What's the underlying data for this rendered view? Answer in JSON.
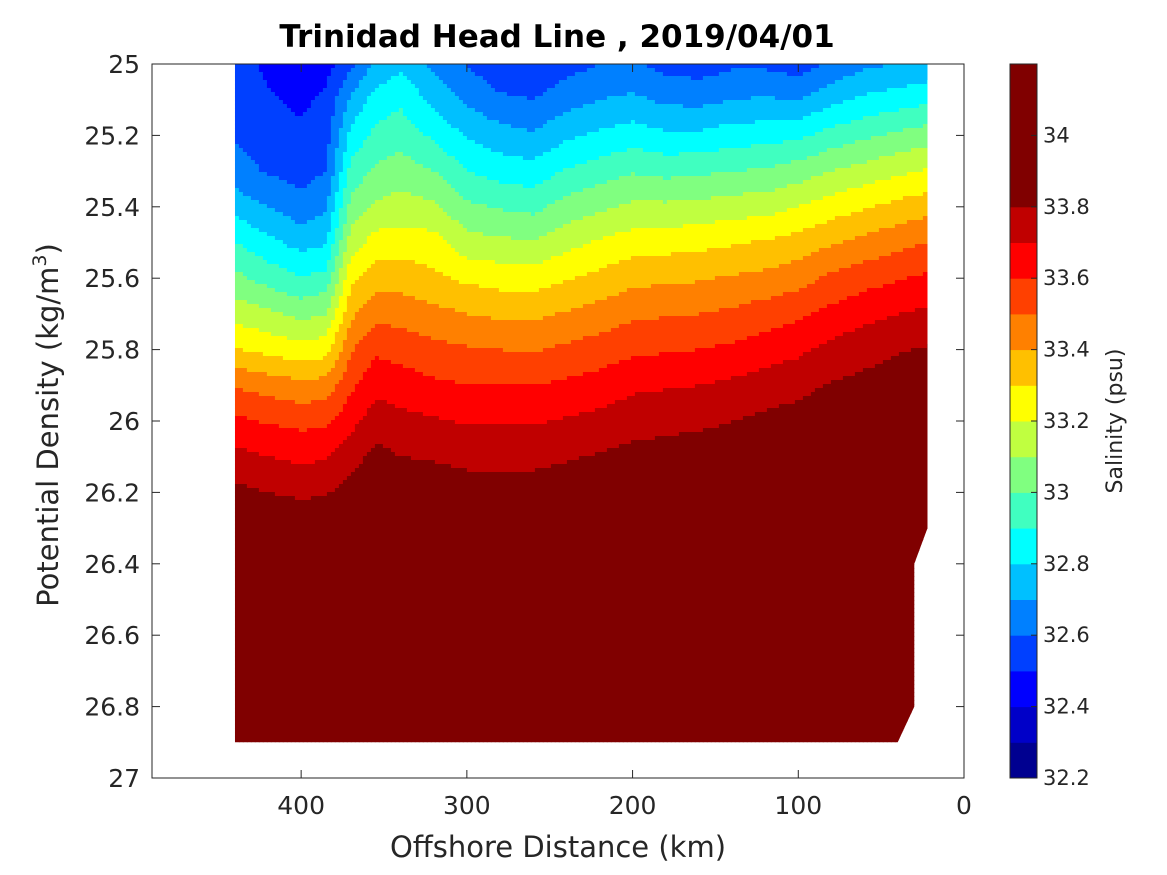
{
  "chart_data": {
    "type": "heatmap",
    "subtype": "filled-contour",
    "title": "Trinidad Head Line , 2019/04/01",
    "xlabel": "Offshore Distance (km)",
    "ylabel": "Potential Density (kg/m",
    "ylabel_sup": "3",
    "ylabel_end": ")",
    "colorbar_label": "Salinity (psu)",
    "x_reversed": true,
    "y_reversed": true,
    "xlim": [
      0,
      490
    ],
    "ylim": [
      25,
      27
    ],
    "x_ticks": [
      400,
      300,
      200,
      100,
      0
    ],
    "y_ticks": [
      25,
      25.2,
      25.4,
      25.6,
      25.8,
      26,
      26.2,
      26.4,
      26.6,
      26.8,
      27
    ],
    "colorbar_range": [
      32.2,
      34.2
    ],
    "colorbar_ticks": [
      32.2,
      32.4,
      32.6,
      32.8,
      33,
      33.2,
      33.4,
      33.6,
      33.8,
      34
    ],
    "contour_step": 0.1,
    "color_levels": [
      "#000090",
      "#0000c8",
      "#0000ff",
      "#0040ff",
      "#0080ff",
      "#00c0ff",
      "#00ffff",
      "#40ffc0",
      "#80ff80",
      "#c0ff40",
      "#ffff00",
      "#ffc000",
      "#ff8000",
      "#ff4000",
      "#ff0000",
      "#c00000",
      "#800000"
    ],
    "columns": [
      {
        "x": 440,
        "s": [
          32.55,
          32.55,
          32.59,
          32.64,
          32.76,
          32.9,
          33.03,
          33.16,
          33.31,
          33.49,
          33.62,
          33.73,
          33.83,
          33.93,
          34.0,
          34.05,
          34.1,
          34.11
        ]
      },
      {
        "x": 420,
        "s": [
          32.48,
          32.51,
          32.55,
          32.59,
          32.7,
          32.83,
          32.96,
          33.12,
          33.27,
          33.46,
          33.59,
          33.7,
          33.8,
          33.9,
          33.99,
          34.04,
          34.09,
          34.11
        ]
      },
      {
        "x": 400,
        "s": [
          32.44,
          32.48,
          32.52,
          32.56,
          32.64,
          32.76,
          32.91,
          33.07,
          33.24,
          33.43,
          33.57,
          33.68,
          33.78,
          33.89,
          33.98,
          34.03,
          34.08,
          34.11
        ]
      },
      {
        "x": 385,
        "s": [
          32.46,
          32.52,
          32.56,
          32.6,
          32.68,
          32.79,
          32.93,
          33.1,
          33.26,
          33.44,
          33.58,
          33.69,
          33.79,
          33.89,
          33.98,
          34.03,
          34.08,
          34.11
        ]
      },
      {
        "x": 370,
        "s": [
          32.58,
          32.72,
          32.83,
          32.93,
          33.04,
          33.15,
          33.27,
          33.38,
          33.49,
          33.58,
          33.67,
          33.76,
          33.84,
          33.92,
          33.99,
          34.04,
          34.08,
          34.11
        ]
      },
      {
        "x": 355,
        "s": [
          32.72,
          32.84,
          32.93,
          33.02,
          33.12,
          33.24,
          33.36,
          33.47,
          33.58,
          33.67,
          33.75,
          33.83,
          33.9,
          33.96,
          34.01,
          34.05,
          34.09,
          34.11
        ]
      },
      {
        "x": 340,
        "s": [
          32.78,
          32.88,
          32.96,
          33.05,
          33.14,
          33.25,
          33.36,
          33.46,
          33.56,
          33.65,
          33.73,
          33.8,
          33.88,
          33.95,
          34.01,
          34.06,
          34.1,
          34.12
        ]
      },
      {
        "x": 320,
        "s": [
          32.68,
          32.77,
          32.88,
          33.0,
          33.12,
          33.24,
          33.32,
          33.43,
          33.53,
          33.62,
          33.71,
          33.79,
          33.87,
          33.94,
          34.01,
          34.07,
          34.11,
          34.12
        ]
      },
      {
        "x": 300,
        "s": [
          32.6,
          32.68,
          32.79,
          32.9,
          33.02,
          33.14,
          33.28,
          33.4,
          33.51,
          33.6,
          33.69,
          33.77,
          33.85,
          33.93,
          34.0,
          34.06,
          34.1,
          34.12
        ]
      },
      {
        "x": 280,
        "s": [
          32.52,
          32.62,
          32.74,
          32.86,
          32.99,
          33.12,
          33.26,
          33.38,
          33.5,
          33.6,
          33.69,
          33.77,
          33.85,
          33.93,
          34.0,
          34.05,
          34.1,
          34.11
        ]
      },
      {
        "x": 260,
        "s": [
          32.5,
          32.6,
          32.71,
          32.84,
          32.97,
          33.11,
          33.25,
          33.38,
          33.49,
          33.6,
          33.69,
          33.77,
          33.85,
          33.92,
          33.99,
          34.05,
          34.1,
          34.11
        ]
      },
      {
        "x": 240,
        "s": [
          32.56,
          32.66,
          32.78,
          32.91,
          33.04,
          33.17,
          33.29,
          33.41,
          33.52,
          33.62,
          33.71,
          33.79,
          33.86,
          33.93,
          34.0,
          34.05,
          34.1,
          34.11
        ]
      },
      {
        "x": 220,
        "s": [
          32.6,
          32.7,
          32.82,
          32.95,
          33.08,
          33.21,
          33.33,
          33.44,
          33.55,
          33.64,
          33.73,
          33.81,
          33.88,
          33.95,
          34.01,
          34.06,
          34.1,
          34.11
        ]
      },
      {
        "x": 200,
        "s": [
          32.62,
          32.72,
          32.85,
          32.99,
          33.12,
          33.25,
          33.37,
          33.48,
          33.58,
          33.68,
          33.76,
          33.83,
          33.9,
          33.96,
          34.01,
          34.05,
          34.09,
          34.11
        ]
      },
      {
        "x": 180,
        "s": [
          32.56,
          32.68,
          32.82,
          32.97,
          33.12,
          33.26,
          33.38,
          33.49,
          33.59,
          33.69,
          33.77,
          33.84,
          33.9,
          33.96,
          34.01,
          34.05,
          34.09,
          34.11
        ]
      },
      {
        "x": 160,
        "s": [
          32.55,
          32.67,
          32.82,
          32.98,
          33.13,
          33.27,
          33.39,
          33.5,
          33.6,
          33.7,
          33.78,
          33.85,
          33.91,
          33.97,
          34.02,
          34.06,
          34.1,
          34.12
        ]
      },
      {
        "x": 140,
        "s": [
          32.58,
          32.7,
          32.85,
          33.0,
          33.15,
          33.29,
          33.41,
          33.52,
          33.62,
          33.72,
          33.8,
          33.86,
          33.92,
          33.98,
          34.03,
          34.07,
          34.11,
          34.12
        ]
      },
      {
        "x": 120,
        "s": [
          32.58,
          32.71,
          32.86,
          33.01,
          33.16,
          33.31,
          33.43,
          33.55,
          33.65,
          33.75,
          33.82,
          33.88,
          33.94,
          33.98,
          34.03,
          34.07,
          34.11,
          34.12
        ]
      },
      {
        "x": 100,
        "s": [
          32.55,
          32.7,
          32.88,
          33.05,
          33.2,
          33.34,
          33.46,
          33.58,
          33.68,
          33.77,
          33.84,
          33.89,
          33.94,
          33.98,
          34.03,
          34.07,
          34.11,
          34.12
        ]
      },
      {
        "x": 80,
        "s": [
          32.62,
          32.77,
          32.94,
          33.1,
          33.25,
          33.39,
          33.52,
          33.63,
          33.73,
          33.81,
          33.87,
          33.91,
          33.96,
          34.0,
          34.04,
          34.09,
          34.12,
          34.13
        ]
      },
      {
        "x": 60,
        "s": [
          32.68,
          32.82,
          32.98,
          33.14,
          33.29,
          33.43,
          33.56,
          33.67,
          33.76,
          33.83,
          33.89,
          33.93,
          33.97,
          34.01,
          34.06,
          34.1,
          34.13,
          34.15
        ]
      },
      {
        "x": 40,
        "s": [
          32.7,
          32.85,
          33.02,
          33.18,
          33.33,
          33.47,
          33.59,
          33.7,
          33.79,
          33.86,
          33.91,
          33.95,
          33.99,
          34.02,
          34.06,
          34.1,
          34.14,
          34.17
        ]
      },
      {
        "x": 22,
        "s": [
          32.72,
          32.88,
          33.05,
          33.21,
          33.36,
          33.5,
          33.62,
          33.72,
          33.81,
          33.88,
          33.92,
          33.96,
          34.0,
          34.03,
          34.07,
          34.11,
          34.14,
          34.17
        ]
      }
    ],
    "density_rows": [
      25,
      25.1,
      25.2,
      25.3,
      25.4,
      25.5,
      25.6,
      25.7,
      25.8,
      25.9,
      26,
      26.1,
      26.2,
      26.3,
      26.4,
      26.6,
      26.8,
      26.9
    ],
    "data_domain_polygon": [
      [
        440,
        25
      ],
      [
        22,
        25
      ],
      [
        22,
        26.3
      ],
      [
        30,
        26.4
      ],
      [
        30,
        26.8
      ],
      [
        40,
        26.9
      ],
      [
        440,
        26.9
      ]
    ]
  }
}
